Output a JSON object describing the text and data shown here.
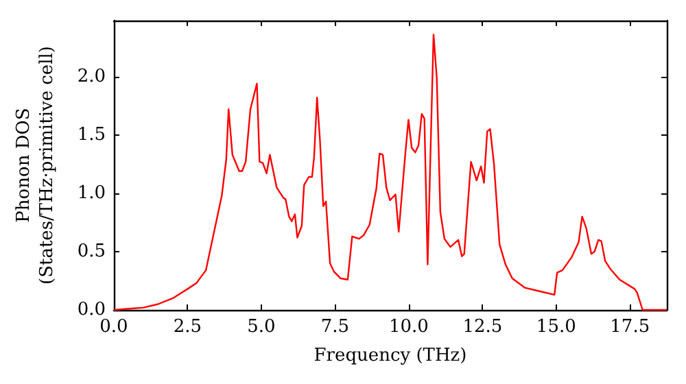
{
  "chart_data": {
    "type": "line",
    "xlabel": "Frequency (THz)",
    "ylabel": "Phonon DOS\n(States/THz·primitive cell)",
    "x": [
      0,
      0.5,
      1,
      1.5,
      2,
      2.5,
      2.8,
      3.12,
      3.66,
      3.81,
      3.89,
      4.02,
      4.25,
      4.35,
      4.47,
      4.63,
      4.85,
      4.94,
      5.05,
      5.18,
      5.29,
      5.52,
      5.75,
      5.82,
      5.94,
      6.03,
      6.14,
      6.22,
      6.37,
      6.45,
      6.61,
      6.72,
      6.79,
      6.89,
      6.99,
      7.1,
      7.19,
      7.33,
      7.46,
      7.69,
      7.93,
      8.08,
      8.31,
      8.47,
      8.67,
      8.9,
      9.01,
      9.12,
      9.24,
      9.36,
      9.55,
      9.66,
      9.89,
      9.99,
      10.1,
      10.22,
      10.33,
      10.44,
      10.53,
      10.64,
      10.84,
      10.95,
      11.07,
      11.21,
      11.41,
      11.68,
      11.8,
      11.88,
      12.11,
      12.3,
      12.45,
      12.55,
      12.66,
      12.76,
      12.89,
      13.08,
      13.28,
      13.51,
      13.94,
      14.44,
      14.94,
      15.03,
      15.21,
      15.52,
      15.76,
      15.88,
      16.02,
      16.19,
      16.3,
      16.43,
      16.53,
      16.66,
      16.84,
      17.15,
      17.66,
      17.74,
      17.93,
      18.75
    ],
    "series": [
      {
        "color": "#ff0000",
        "values": [
          0,
          0.01,
          0.02,
          0.05,
          0.1,
          0.18,
          0.23,
          0.34,
          0.98,
          1.29,
          1.72,
          1.33,
          1.19,
          1.19,
          1.27,
          1.72,
          1.94,
          1.27,
          1.26,
          1.17,
          1.33,
          1.05,
          0.96,
          0.95,
          0.8,
          0.76,
          0.82,
          0.62,
          0.72,
          1.07,
          1.14,
          1.14,
          1.31,
          1.82,
          1.45,
          0.89,
          0.93,
          0.4,
          0.33,
          0.27,
          0.26,
          0.63,
          0.61,
          0.64,
          0.73,
          1.04,
          1.34,
          1.33,
          1.05,
          0.94,
          0.99,
          0.67,
          1.36,
          1.63,
          1.39,
          1.35,
          1.41,
          1.68,
          1.64,
          0.39,
          2.36,
          1.99,
          0.84,
          0.61,
          0.54,
          0.6,
          0.46,
          0.48,
          1.27,
          1.11,
          1.23,
          1.09,
          1.53,
          1.55,
          1.25,
          0.56,
          0.39,
          0.27,
          0.19,
          0.16,
          0.13,
          0.32,
          0.34,
          0.45,
          0.58,
          0.8,
          0.7,
          0.48,
          0.5,
          0.6,
          0.59,
          0.42,
          0.35,
          0.26,
          0.18,
          0.15,
          0,
          0
        ]
      }
    ],
    "xlim": [
      0,
      18.75
    ],
    "xticks": [
      {
        "value": 0,
        "label": "0.0"
      },
      {
        "value": 2.5,
        "label": "2.5"
      },
      {
        "value": 5,
        "label": "5.0"
      },
      {
        "value": 7.5,
        "label": "7.5"
      },
      {
        "value": 10,
        "label": "10.0"
      },
      {
        "value": 12.5,
        "label": "12.5"
      },
      {
        "value": 15,
        "label": "15.0"
      },
      {
        "value": 17.5,
        "label": "17.5"
      }
    ],
    "ylim": [
      0,
      2.48
    ],
    "yticks": [
      {
        "value": 0,
        "label": "0.0"
      },
      {
        "value": 0.5,
        "label": "0.5"
      },
      {
        "value": 1,
        "label": "1.0"
      },
      {
        "value": 1.5,
        "label": "1.5"
      },
      {
        "value": 2,
        "label": "2.0"
      }
    ],
    "line_style": "solid",
    "marker": "none",
    "grid": false
  }
}
